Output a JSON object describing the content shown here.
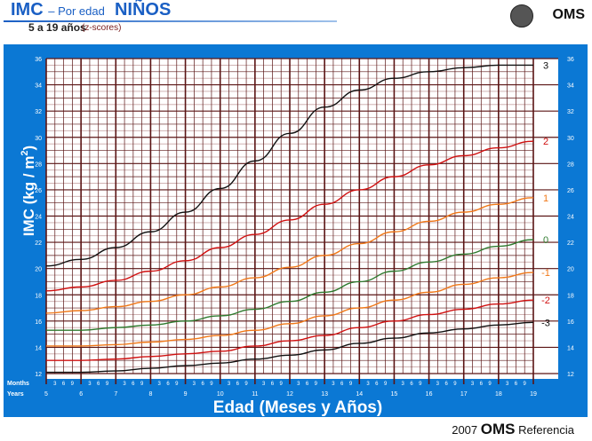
{
  "header": {
    "title_main": "IMC",
    "title_mid": "– Por edad",
    "title_sex": "NIÑOS",
    "subtitle": "5 a 19 años",
    "subtitle_note": "(z-scores)",
    "org": "OMS"
  },
  "footer": {
    "year": "2007",
    "org": "OMS",
    "ref": "Referencia"
  },
  "colors": {
    "panel": "#0b78d4",
    "grid_dark": "#5a1414",
    "grid_light": "#c9a8a8",
    "black": "#111111",
    "red": "#d01010",
    "orange": "#f07818",
    "green": "#2e7a2e"
  },
  "chart_data": {
    "type": "line",
    "title": "IMC – Por edad NIÑOS",
    "xlabel": "Edad (Meses y Años)",
    "ylabel": "IMC (kg / m2)",
    "ylabel_parts": {
      "main": "IMC (kg / m",
      "sup": "2",
      "close": ")"
    },
    "row_labels": {
      "months": "Months",
      "years": "Years"
    },
    "month_ticks": [
      "3",
      "6",
      "9"
    ],
    "xlim": [
      5,
      19
    ],
    "ylim": [
      12,
      36
    ],
    "x": [
      5,
      6,
      7,
      8,
      9,
      10,
      11,
      12,
      13,
      14,
      15,
      16,
      17,
      18,
      19
    ],
    "x_tick_labels": [
      "5",
      "6",
      "7",
      "8",
      "9",
      "10",
      "11",
      "12",
      "13",
      "14",
      "15",
      "16",
      "17",
      "18",
      "19"
    ],
    "y_ticks": [
      12,
      14,
      16,
      18,
      20,
      22,
      24,
      26,
      28,
      30,
      32,
      34,
      36
    ],
    "y_tick_labels": [
      "12",
      "14",
      "16",
      "18",
      "20",
      "22",
      "24",
      "26",
      "28",
      "30",
      "32",
      "34",
      "36"
    ],
    "grid": true,
    "series": [
      {
        "name": "3",
        "color": "black",
        "values": [
          20.2,
          20.7,
          21.6,
          22.8,
          24.3,
          26.1,
          28.2,
          30.3,
          32.3,
          33.6,
          34.5,
          35.0,
          35.3,
          35.5,
          35.5
        ]
      },
      {
        "name": "2",
        "color": "red",
        "values": [
          18.3,
          18.6,
          19.1,
          19.8,
          20.6,
          21.6,
          22.6,
          23.7,
          24.9,
          26.0,
          27.0,
          27.9,
          28.6,
          29.2,
          29.7
        ]
      },
      {
        "name": "1",
        "color": "orange",
        "values": [
          16.6,
          16.8,
          17.1,
          17.5,
          18.0,
          18.6,
          19.3,
          20.1,
          21.0,
          21.9,
          22.8,
          23.6,
          24.3,
          24.9,
          25.4
        ]
      },
      {
        "name": "0",
        "color": "green",
        "values": [
          15.3,
          15.3,
          15.5,
          15.7,
          16.0,
          16.4,
          16.9,
          17.5,
          18.2,
          19.0,
          19.8,
          20.5,
          21.1,
          21.7,
          22.2
        ]
      },
      {
        "name": "-1",
        "color": "orange",
        "values": [
          14.1,
          14.1,
          14.2,
          14.4,
          14.6,
          14.9,
          15.3,
          15.8,
          16.4,
          17.0,
          17.6,
          18.2,
          18.8,
          19.3,
          19.7
        ]
      },
      {
        "name": "-2",
        "color": "red",
        "values": [
          13.0,
          13.0,
          13.1,
          13.3,
          13.5,
          13.7,
          14.1,
          14.5,
          14.9,
          15.5,
          16.0,
          16.5,
          16.9,
          17.3,
          17.6
        ]
      },
      {
        "name": "-3",
        "color": "black",
        "values": [
          12.1,
          12.1,
          12.2,
          12.4,
          12.6,
          12.8,
          13.1,
          13.4,
          13.8,
          14.3,
          14.7,
          15.1,
          15.4,
          15.7,
          15.9
        ]
      }
    ]
  }
}
